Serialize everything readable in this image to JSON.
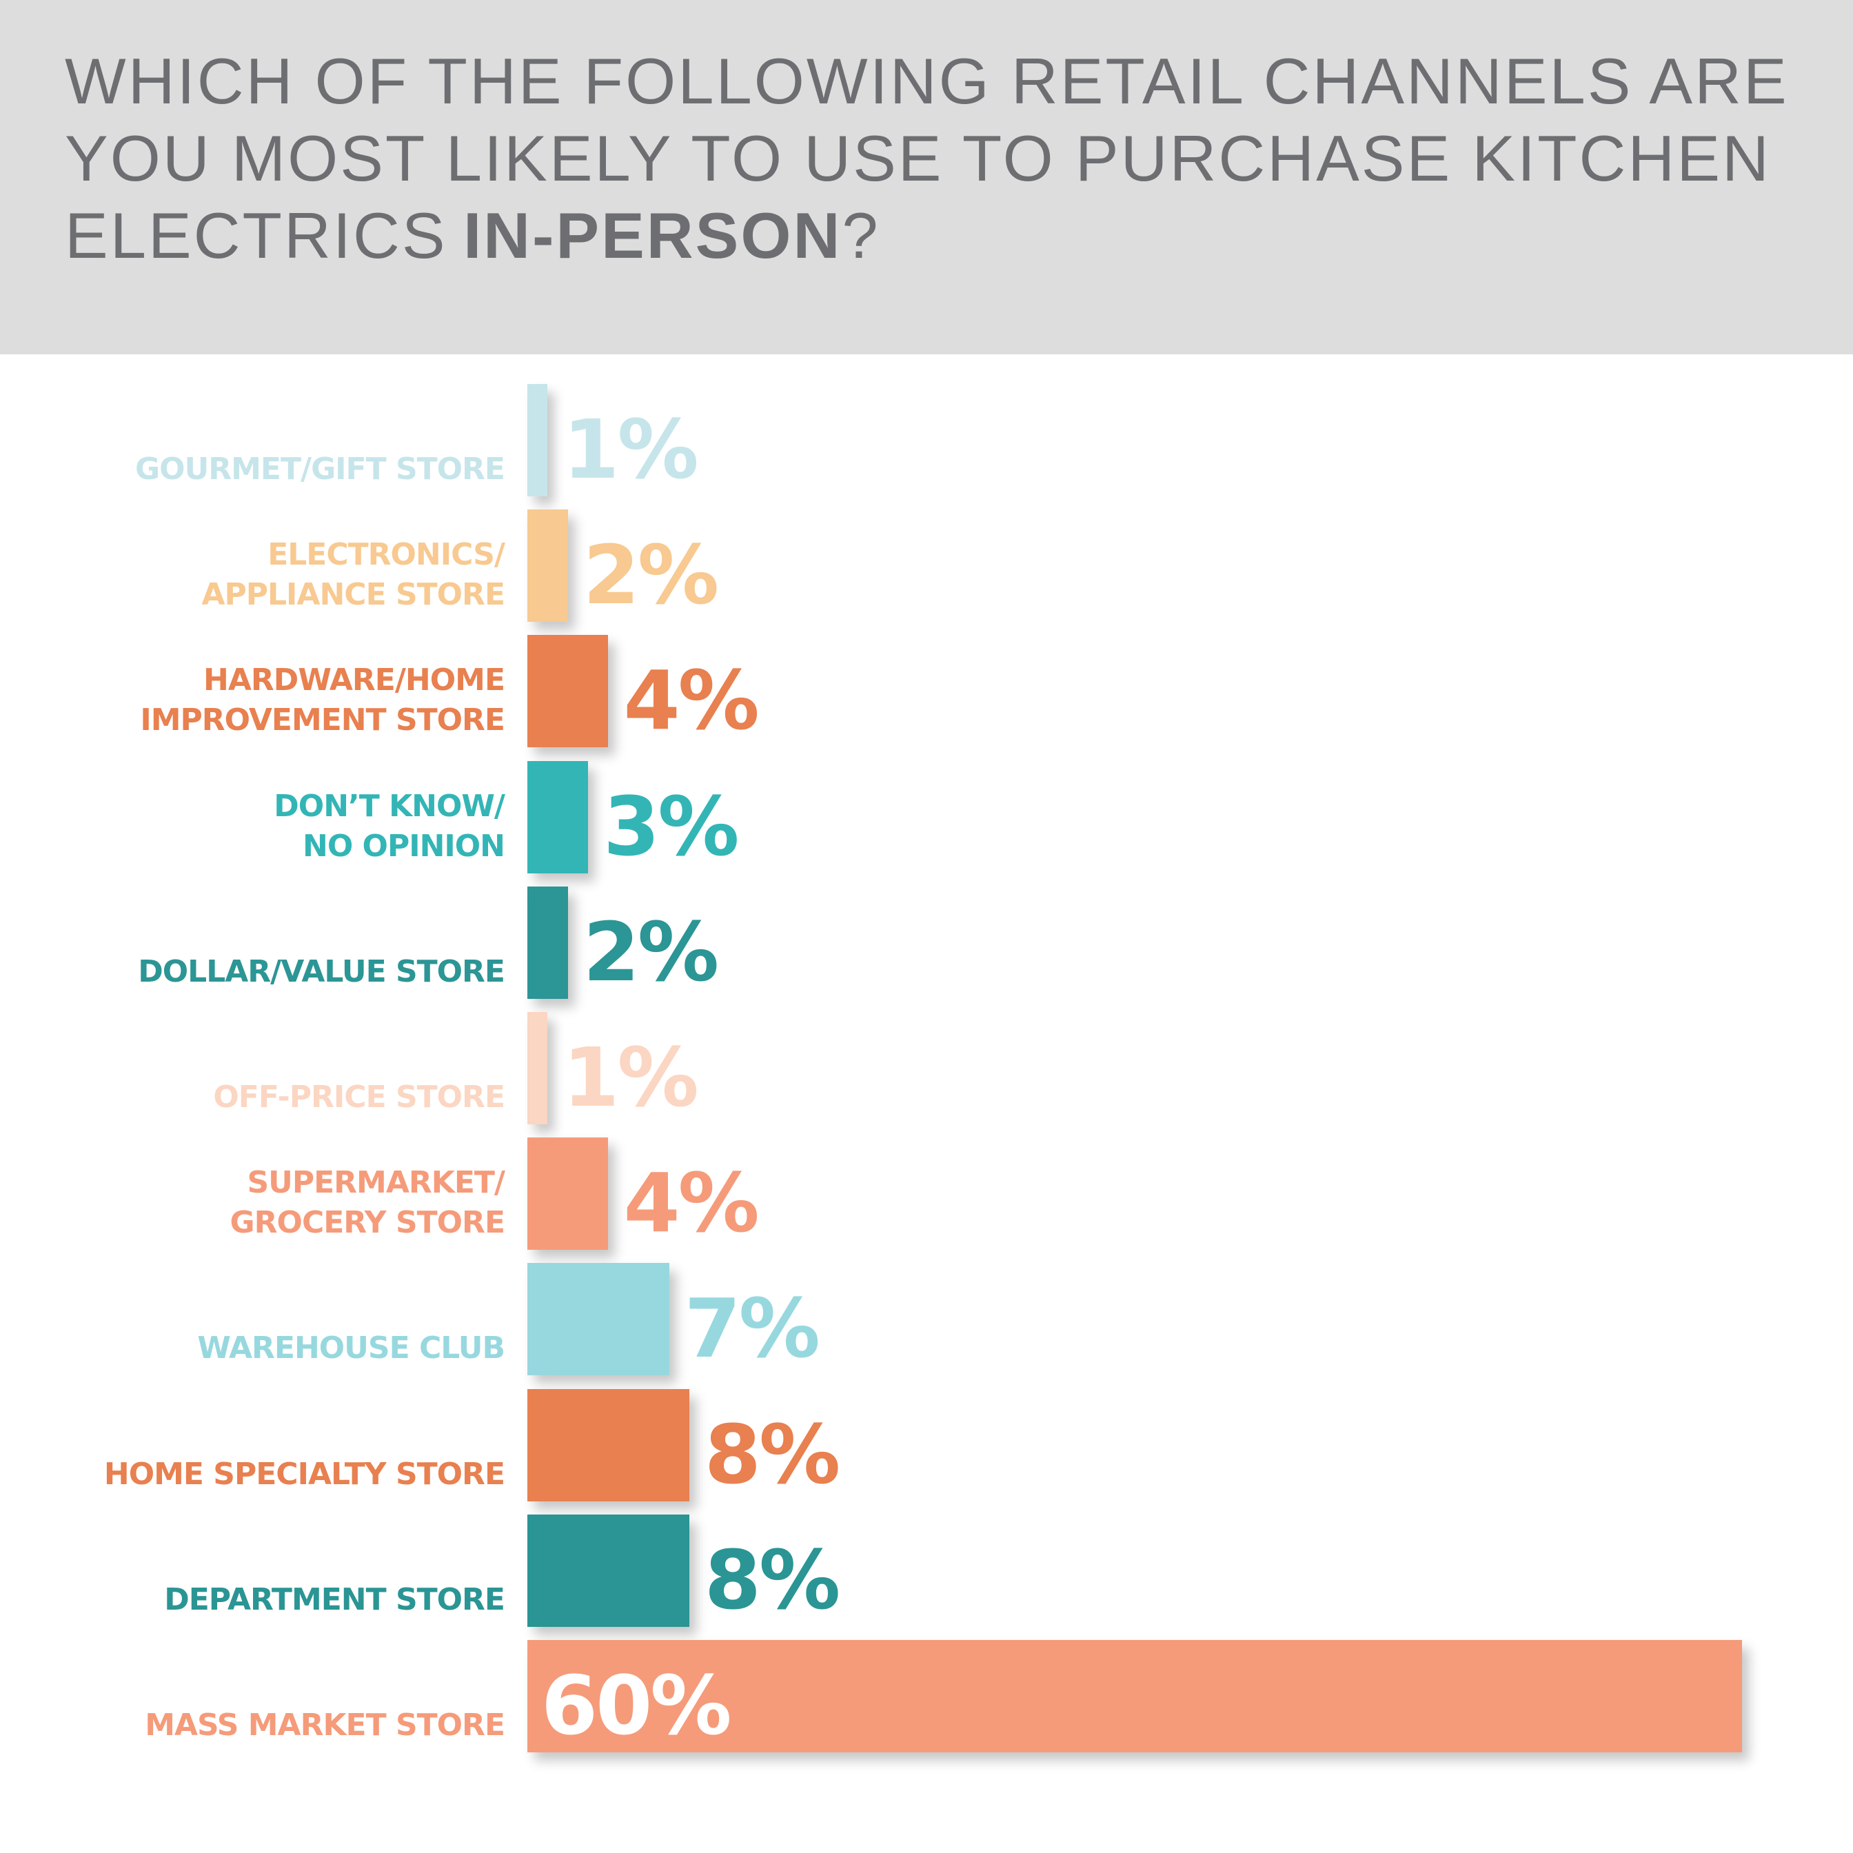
{
  "chart_data": {
    "type": "bar",
    "orientation": "horizontal",
    "title": [
      "WHICH OF THE FOLLOWING RETAIL CHANNELS ARE YOU MOST LIKELY TO USE TO PURCHASE KITCHEN ELECTRICS",
      "IN-PERSON",
      "?"
    ],
    "categories": [
      "GOURMET/GIFT STORE",
      "ELECTRONICS/\nAPPLIANCE STORE",
      "HARDWARE/HOME\nIMPROVEMENT STORE",
      "DON’T KNOW/\nNO OPINION",
      "DOLLAR/VALUE STORE",
      "OFF-PRICE STORE",
      "SUPERMARKET/\nGROCERY STORE",
      "WAREHOUSE CLUB",
      "HOME SPECIALTY STORE",
      "DEPARTMENT STORE",
      "MASS MARKET STORE"
    ],
    "values": [
      1,
      2,
      4,
      3,
      2,
      1,
      4,
      7,
      8,
      8,
      60
    ],
    "value_labels": [
      "1%",
      "2%",
      "4%",
      "3%",
      "2%",
      "1%",
      "4%",
      "7%",
      "8%",
      "8%",
      "60%"
    ],
    "colors": [
      "#c6e5ea",
      "#f8c990",
      "#e8804f",
      "#33b5b6",
      "#2c9595",
      "#fbd6c2",
      "#f59b7a",
      "#97d8df",
      "#e8804f",
      "#2a9594",
      "#f59b7a"
    ]
  }
}
